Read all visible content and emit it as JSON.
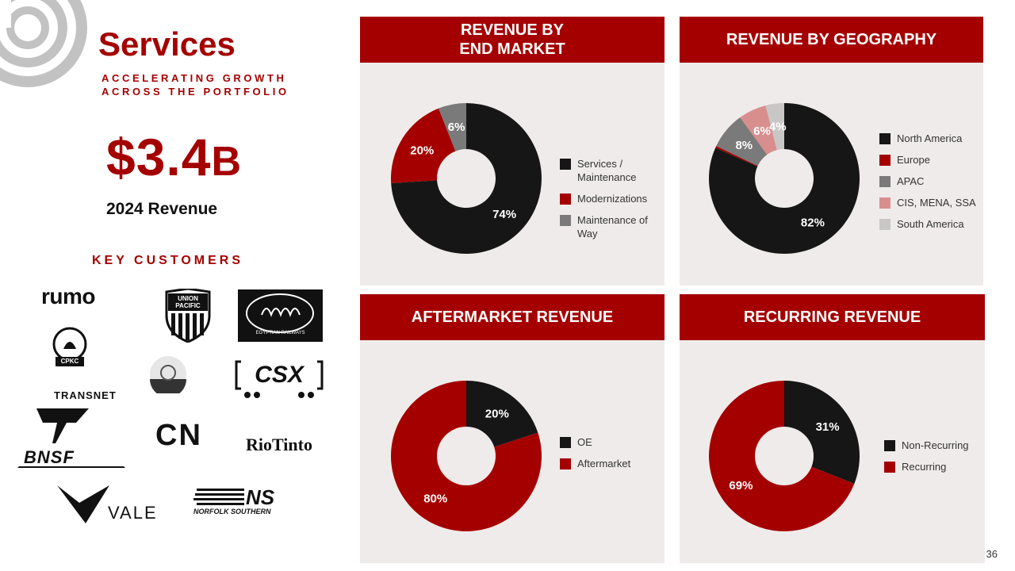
{
  "header": {
    "title": "Services",
    "subtitle": "ACCELERATING GROWTH ACROSS THE PORTFOLIO",
    "big_number": "$3.4",
    "big_number_unit": "B",
    "revenue_label": "2024 Revenue",
    "key_customers_label": "KEY CUSTOMERS"
  },
  "customers": {
    "rumo": "rumo",
    "union_pacific_line1": "UNION",
    "union_pacific_line2": "PACIFIC",
    "egyptian_railways": "EGYPTIAN RAILWAYS",
    "cpkc": "CPKC",
    "csx": "CSX",
    "transnet": "TRANSNET",
    "cn": "CN",
    "riotinto": "RioTinto",
    "bnsf": "BNSF",
    "vale": "VALE",
    "norfolk_southern_ns": "NS",
    "norfolk_southern_text": "NORFOLK SOUTHERN"
  },
  "page_number": "36",
  "colors": {
    "brand_red": "#a50000",
    "black": "#161616",
    "grey": "#7a7a7a",
    "pink": "#d98e8e",
    "light_grey": "#c9c7c6",
    "panel_bg": "#efebea"
  },
  "chart_data": [
    {
      "type": "pie",
      "title": "REVENUE BY END MARKET",
      "categories": [
        "Services / Maintenance",
        "Modernizations",
        "Maintenance of Way"
      ],
      "values": [
        74,
        20,
        6
      ],
      "labels": [
        "74%",
        "20%",
        "6%"
      ],
      "colors": [
        "#161616",
        "#a50000",
        "#7a7a7a"
      ],
      "legend": "right"
    },
    {
      "type": "pie",
      "title": "REVENUE BY GEOGRAPHY",
      "categories": [
        "North America",
        "Europe",
        "APAC",
        "CIS, MENA, SSA",
        "South America"
      ],
      "values": [
        82,
        0.4,
        8,
        6,
        4
      ],
      "labels": [
        "82%",
        "",
        "8%",
        "6%",
        "4%"
      ],
      "colors": [
        "#161616",
        "#a50000",
        "#7a7a7a",
        "#d98e8e",
        "#c9c7c6"
      ],
      "legend": "right"
    },
    {
      "type": "pie",
      "title": "AFTERMARKET REVENUE",
      "categories": [
        "OE",
        "Aftermarket"
      ],
      "values": [
        20,
        80
      ],
      "labels": [
        "20%",
        "80%"
      ],
      "colors": [
        "#161616",
        "#a50000"
      ],
      "legend": "right"
    },
    {
      "type": "pie",
      "title": "RECURRING REVENUE",
      "categories": [
        "Non-Recurring",
        "Recurring"
      ],
      "values": [
        31,
        69
      ],
      "labels": [
        "31%",
        "69%"
      ],
      "colors": [
        "#161616",
        "#a50000"
      ],
      "legend": "right"
    }
  ]
}
